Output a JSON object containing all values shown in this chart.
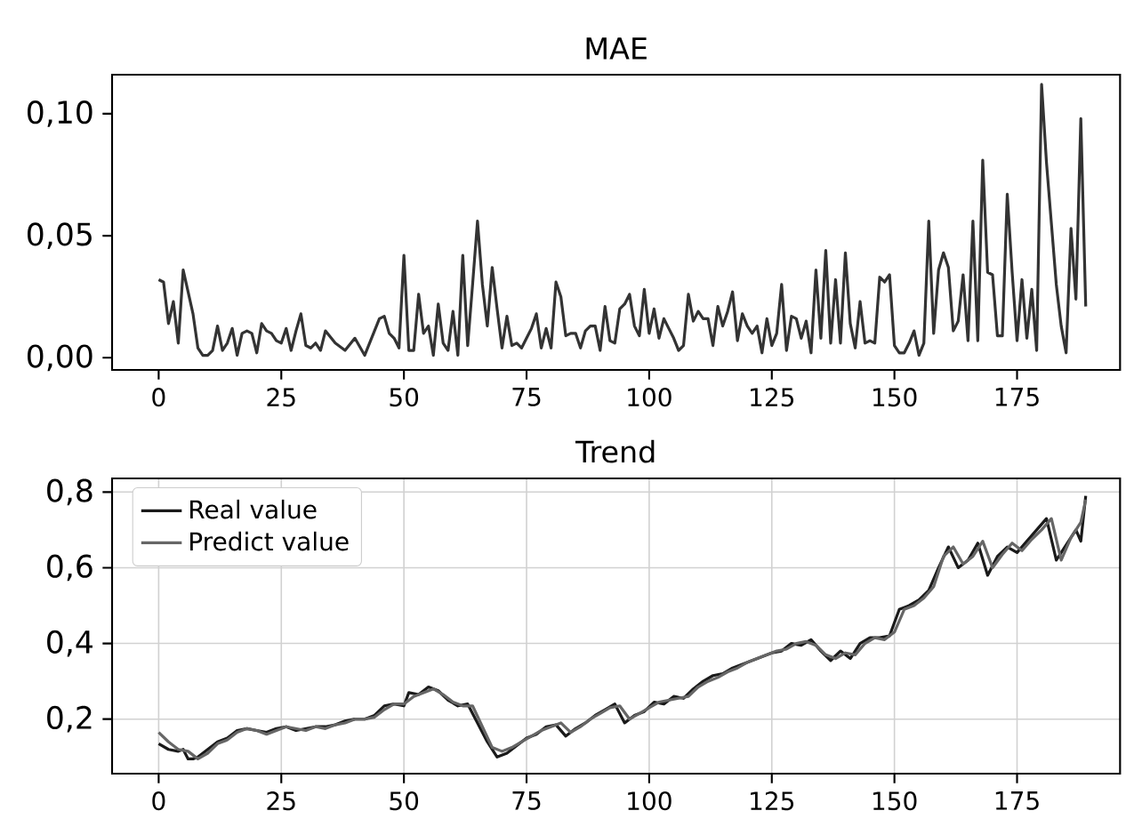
{
  "chart_data": [
    {
      "type": "line",
      "title": "MAE",
      "xlim": [
        -9.5,
        196
      ],
      "ylim": [
        -0.005,
        0.116
      ],
      "xticks": [
        0,
        25,
        50,
        75,
        100,
        125,
        150,
        175
      ],
      "yticks": [
        {
          "value": 0,
          "label": "0,00"
        },
        {
          "value": 0.05,
          "label": "0,05"
        },
        {
          "value": 0.1,
          "label": "0,10"
        }
      ],
      "grid": false,
      "marker": "none",
      "series": [
        {
          "color": "#333333",
          "x": [
            0,
            1,
            2,
            3,
            4,
            5,
            6,
            7,
            8,
            9,
            10,
            11,
            12,
            13,
            14,
            15,
            16,
            17,
            18,
            19,
            20,
            21,
            22,
            23,
            24,
            25,
            26,
            27,
            28,
            29,
            30,
            31,
            32,
            33,
            34,
            36,
            38,
            40,
            42,
            45,
            46,
            47,
            48,
            49,
            50,
            51,
            52,
            53,
            54,
            55,
            56,
            57,
            58,
            59,
            60,
            61,
            62,
            63,
            64,
            65,
            66,
            67,
            68,
            69,
            70,
            71,
            72,
            73,
            74,
            75,
            76,
            77,
            78,
            79,
            80,
            81,
            82,
            83,
            84,
            85,
            86,
            87,
            88,
            89,
            90,
            91,
            92,
            93,
            94,
            95,
            96,
            97,
            98,
            99,
            100,
            101,
            102,
            103,
            104,
            105,
            106,
            107,
            108,
            109,
            110,
            111,
            112,
            113,
            114,
            115,
            116,
            117,
            118,
            119,
            120,
            121,
            122,
            123,
            124,
            125,
            126,
            127,
            128,
            129,
            130,
            131,
            132,
            133,
            134,
            135,
            136,
            137,
            138,
            139,
            140,
            141,
            142,
            143,
            144,
            145,
            146,
            147,
            148,
            149,
            150,
            151,
            152,
            153,
            154,
            155,
            156,
            157,
            158,
            159,
            160,
            161,
            162,
            163,
            164,
            165,
            166,
            167,
            168,
            169,
            170,
            171,
            172,
            173,
            174,
            175,
            176,
            177,
            178,
            179,
            180,
            181,
            182,
            183,
            184,
            185,
            186,
            187,
            188,
            189
          ],
          "values": [
            0.032,
            0.031,
            0.014,
            0.023,
            0.006,
            0.036,
            0.027,
            0.018,
            0.004,
            0.001,
            0.001,
            0.003,
            0.013,
            0.003,
            0.006,
            0.012,
            0.001,
            0.01,
            0.011,
            0.01,
            0.002,
            0.014,
            0.011,
            0.01,
            0.007,
            0.006,
            0.012,
            0.003,
            0.011,
            0.018,
            0.005,
            0.004,
            0.006,
            0.003,
            0.011,
            0.006,
            0.003,
            0.008,
            0.001,
            0.016,
            0.017,
            0.01,
            0.008,
            0.004,
            0.042,
            0.003,
            0.003,
            0.026,
            0.01,
            0.013,
            0.001,
            0.022,
            0.006,
            0.003,
            0.019,
            0.001,
            0.042,
            0.005,
            0.03,
            0.056,
            0.03,
            0.013,
            0.037,
            0.02,
            0.004,
            0.017,
            0.005,
            0.006,
            0.004,
            0.008,
            0.012,
            0.018,
            0.004,
            0.012,
            0.004,
            0.031,
            0.025,
            0.009,
            0.01,
            0.01,
            0.004,
            0.011,
            0.013,
            0.013,
            0.003,
            0.021,
            0.007,
            0.006,
            0.02,
            0.022,
            0.026,
            0.013,
            0.009,
            0.028,
            0.01,
            0.02,
            0.008,
            0.016,
            0.012,
            0.008,
            0.003,
            0.005,
            0.026,
            0.015,
            0.019,
            0.016,
            0.016,
            0.005,
            0.021,
            0.013,
            0.019,
            0.027,
            0.007,
            0.018,
            0.013,
            0.01,
            0.013,
            0.002,
            0.016,
            0.005,
            0.01,
            0.03,
            0.003,
            0.017,
            0.016,
            0.008,
            0.015,
            0.002,
            0.036,
            0.008,
            0.044,
            0.006,
            0.032,
            0.006,
            0.043,
            0.014,
            0.004,
            0.023,
            0.006,
            0.007,
            0.006,
            0.033,
            0.031,
            0.034,
            0.005,
            0.002,
            0.002,
            0.006,
            0.011,
            0.001,
            0.006,
            0.056,
            0.01,
            0.036,
            0.043,
            0.037,
            0.011,
            0.015,
            0.034,
            0.007,
            0.056,
            0.007,
            0.081,
            0.035,
            0.034,
            0.009,
            0.009,
            0.067,
            0.035,
            0.007,
            0.032,
            0.008,
            0.028,
            0.003,
            0.112,
            0.08,
            0.055,
            0.03,
            0.013,
            0.002,
            0.053,
            0.024,
            0.098,
            0.021
          ]
        }
      ]
    },
    {
      "type": "line",
      "title": "Trend",
      "xlim": [
        -9.5,
        196
      ],
      "ylim": [
        0.056,
        0.836
      ],
      "xticks": [
        0,
        25,
        50,
        75,
        100,
        125,
        150,
        175
      ],
      "yticks": [
        {
          "value": 0.2,
          "label": "0,2"
        },
        {
          "value": 0.4,
          "label": "0,4"
        },
        {
          "value": 0.6,
          "label": "0,6"
        },
        {
          "value": 0.8,
          "label": "0,8"
        }
      ],
      "grid": true,
      "legend": "top left",
      "marker": "none",
      "series": [
        {
          "name": "Real value",
          "color": "#1a1a1a",
          "x": [
            0,
            2,
            4,
            5,
            6,
            7,
            8,
            10,
            12,
            14,
            16,
            18,
            20,
            22,
            24,
            26,
            28,
            30,
            32,
            34,
            36,
            38,
            40,
            42,
            44,
            46,
            48,
            50,
            51,
            53,
            55,
            57,
            59,
            61,
            63,
            65,
            67,
            69,
            71,
            73,
            75,
            77,
            79,
            81,
            83,
            85,
            87,
            89,
            91,
            93,
            95,
            97,
            99,
            101,
            103,
            105,
            107,
            109,
            111,
            113,
            115,
            117,
            119,
            121,
            123,
            125,
            127,
            129,
            131,
            133,
            135,
            137,
            139,
            141,
            143,
            145,
            147,
            149,
            151,
            153,
            155,
            157,
            159,
            161,
            163,
            165,
            167,
            169,
            171,
            173,
            175,
            177,
            179,
            181,
            183,
            185,
            187,
            188,
            189
          ],
          "values": [
            0.135,
            0.12,
            0.115,
            0.12,
            0.095,
            0.095,
            0.1,
            0.12,
            0.14,
            0.15,
            0.17,
            0.175,
            0.17,
            0.165,
            0.175,
            0.18,
            0.17,
            0.175,
            0.18,
            0.18,
            0.185,
            0.195,
            0.2,
            0.2,
            0.21,
            0.235,
            0.24,
            0.235,
            0.27,
            0.265,
            0.285,
            0.275,
            0.25,
            0.235,
            0.24,
            0.19,
            0.14,
            0.1,
            0.11,
            0.13,
            0.15,
            0.16,
            0.18,
            0.185,
            0.155,
            0.175,
            0.19,
            0.21,
            0.225,
            0.24,
            0.19,
            0.21,
            0.22,
            0.245,
            0.24,
            0.26,
            0.255,
            0.28,
            0.3,
            0.315,
            0.32,
            0.335,
            0.345,
            0.355,
            0.365,
            0.375,
            0.38,
            0.4,
            0.395,
            0.41,
            0.38,
            0.355,
            0.38,
            0.36,
            0.4,
            0.415,
            0.415,
            0.42,
            0.49,
            0.5,
            0.515,
            0.54,
            0.6,
            0.655,
            0.6,
            0.62,
            0.665,
            0.58,
            0.63,
            0.655,
            0.64,
            0.67,
            0.7,
            0.73,
            0.62,
            0.66,
            0.7,
            0.67,
            0.79
          ]
        },
        {
          "name": "Predict value",
          "color": "#666666",
          "x": [
            0,
            2,
            4,
            6,
            8,
            10,
            12,
            14,
            16,
            18,
            20,
            22,
            24,
            26,
            28,
            30,
            32,
            34,
            36,
            38,
            40,
            42,
            44,
            46,
            48,
            50,
            52,
            54,
            56,
            58,
            60,
            62,
            64,
            66,
            68,
            70,
            72,
            74,
            76,
            78,
            80,
            82,
            84,
            86,
            88,
            90,
            92,
            94,
            96,
            98,
            100,
            102,
            104,
            106,
            108,
            110,
            112,
            114,
            116,
            118,
            120,
            122,
            124,
            126,
            128,
            130,
            132,
            134,
            136,
            138,
            140,
            142,
            144,
            146,
            148,
            150,
            152,
            154,
            156,
            158,
            160,
            162,
            164,
            166,
            168,
            170,
            172,
            174,
            176,
            178,
            180,
            182,
            184,
            186,
            188,
            189
          ],
          "values": [
            0.165,
            0.14,
            0.12,
            0.115,
            0.095,
            0.11,
            0.135,
            0.145,
            0.165,
            0.175,
            0.17,
            0.16,
            0.17,
            0.18,
            0.175,
            0.17,
            0.18,
            0.175,
            0.185,
            0.19,
            0.2,
            0.2,
            0.205,
            0.225,
            0.24,
            0.24,
            0.26,
            0.27,
            0.28,
            0.265,
            0.245,
            0.235,
            0.235,
            0.18,
            0.125,
            0.115,
            0.125,
            0.14,
            0.155,
            0.17,
            0.18,
            0.19,
            0.165,
            0.18,
            0.2,
            0.215,
            0.23,
            0.235,
            0.2,
            0.215,
            0.23,
            0.245,
            0.25,
            0.255,
            0.26,
            0.285,
            0.3,
            0.31,
            0.325,
            0.335,
            0.35,
            0.36,
            0.37,
            0.38,
            0.385,
            0.4,
            0.405,
            0.395,
            0.37,
            0.36,
            0.375,
            0.37,
            0.4,
            0.415,
            0.41,
            0.43,
            0.49,
            0.5,
            0.52,
            0.55,
            0.63,
            0.655,
            0.61,
            0.63,
            0.67,
            0.6,
            0.635,
            0.665,
            0.645,
            0.675,
            0.7,
            0.73,
            0.62,
            0.68,
            0.72,
            0.78
          ]
        }
      ]
    }
  ]
}
